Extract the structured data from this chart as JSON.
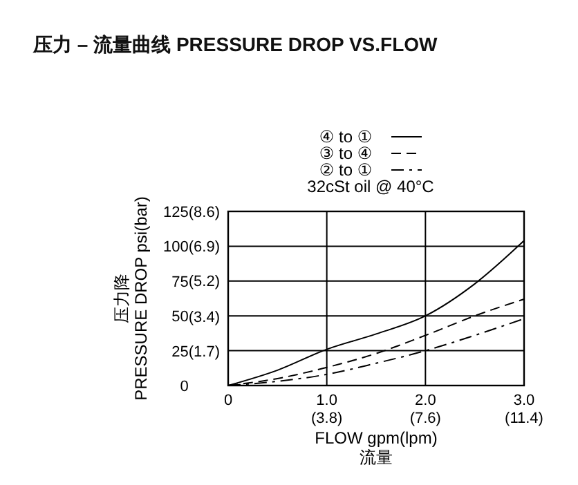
{
  "chart_data": {
    "type": "line",
    "title": "压力 – 流量曲线 PRESSURE DROP VS.FLOW",
    "xlabel": "FLOW gpm(lpm)\n流量",
    "ylabel": "压力降\nPRESSURE DROP  psi(bar)",
    "xlim": [
      0,
      3
    ],
    "xticks": [
      0,
      {
        "value": 1,
        "label": "1.0"
      },
      {
        "value": 2,
        "label": "2.0"
      },
      {
        "value": 3,
        "label": "3.0"
      }
    ],
    "x2lim": [
      0,
      11.4
    ],
    "x2ticks": [
      {
        "value": 3.8,
        "label": "(3.8)"
      },
      {
        "value": 7.6,
        "label": "(7.6)"
      },
      {
        "value": 11.4,
        "label": "(11.4)"
      }
    ],
    "ylim": [
      0,
      125
    ],
    "yticks": [
      0,
      25,
      50,
      75,
      100,
      125
    ],
    "y2lim": [
      0,
      8.6
    ],
    "y2ticks": [
      {
        "value": 1.7,
        "label": "(1.7)"
      },
      {
        "value": 3.4,
        "label": "(3.4)"
      },
      {
        "value": 5.2,
        "label": "(5.2)"
      },
      {
        "value": 6.9,
        "label": "(6.9)"
      },
      {
        "value": 8.6,
        "label": "(8.6)"
      }
    ],
    "x": [
      0,
      0.5,
      1,
      1.5,
      2,
      2.5,
      3
    ],
    "series": [
      {
        "name": "④ to ①",
        "color": "#000000",
        "line_style": "solid",
        "values": [
          0,
          11,
          26,
          37,
          50,
          73,
          104
        ]
      },
      {
        "name": "③ to ④",
        "color": "#000000",
        "line_style": "dashed",
        "values": [
          0,
          5,
          13,
          23,
          36,
          50,
          62
        ]
      },
      {
        "name": "② to ①",
        "color": "#000000",
        "line_style": "dashdot",
        "values": [
          0,
          3,
          8,
          16,
          25,
          36,
          48
        ]
      }
    ],
    "grid": true,
    "legend": "top",
    "marker": "none",
    "annotations": [
      "32cSt oil @ 40°C"
    ]
  }
}
